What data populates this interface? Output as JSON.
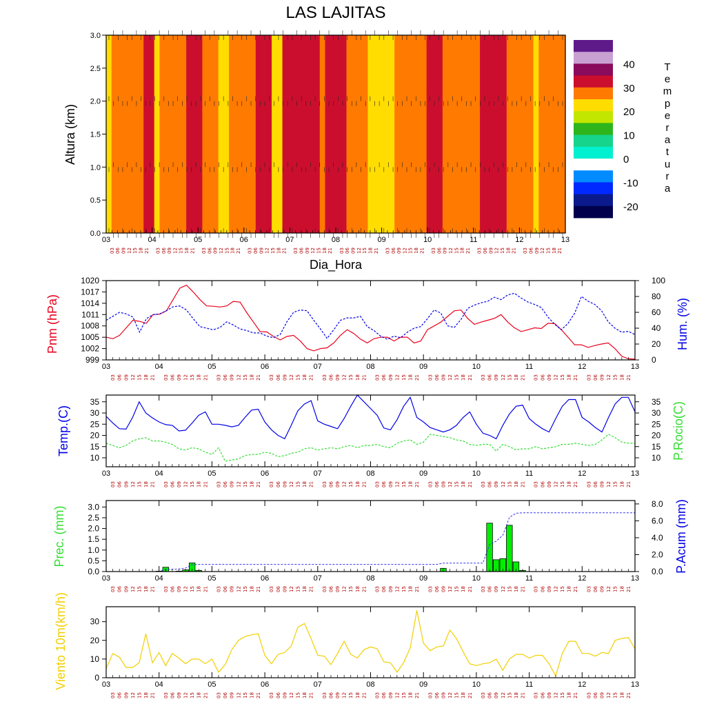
{
  "title": "LAS LAJITAS",
  "day_labels": [
    "03",
    "04",
    "05",
    "06",
    "07",
    "08",
    "09",
    "10",
    "11",
    "12",
    "13"
  ],
  "hour_labels": [
    "03",
    "06",
    "09",
    "12",
    "15",
    "18",
    "21"
  ],
  "colors": {
    "pressure": "#e8001c",
    "humidity": "#0000e6",
    "temp": "#0000e6",
    "dew": "#33dd33",
    "precip_fill": "#00ee00",
    "acc": "#3333ee",
    "wind": "#f2cf00",
    "label_hour": "#b00000"
  },
  "chart_data": [
    {
      "type": "heatmap",
      "name": "temperature_section",
      "title": "LAS LAJITAS",
      "xlabel": "Dia_Hora",
      "ylabel": "Altura (km)",
      "ylim": [
        0,
        3
      ],
      "yticks": [
        0.0,
        0.5,
        1.0,
        1.5,
        2.0,
        2.5,
        3.0
      ],
      "ytick_labels": [
        "0.0",
        "0.5",
        "1.0",
        "1.5",
        "2.0",
        "2.5",
        "3.0"
      ],
      "colorbar": {
        "label": "Temperatura",
        "label_letters": [
          "T",
          "e",
          "m",
          "p",
          "e",
          "r",
          "a",
          "t",
          "u",
          "r",
          "a"
        ],
        "tick_labels": [
          "40",
          "30",
          "20",
          "10",
          "0",
          "-10",
          "-20"
        ],
        "levels": [
          {
            "max": -20,
            "color": "#00004c"
          },
          {
            "max": -15,
            "color": "#0a1a8c"
          },
          {
            "max": -10,
            "color": "#0029ff"
          },
          {
            "max": -5,
            "color": "#008cff"
          },
          {
            "max": 0,
            "color": "#ffffff"
          },
          {
            "max": 5,
            "color": "#00f0d0"
          },
          {
            "max": 10,
            "color": "#16d48c"
          },
          {
            "max": 15,
            "color": "#2fb51c"
          },
          {
            "max": 20,
            "color": "#c2e600"
          },
          {
            "max": 25,
            "color": "#ffdd00"
          },
          {
            "max": 30,
            "color": "#ff7a00"
          },
          {
            "max": 35,
            "color": "#cc0e2e"
          },
          {
            "max": 40,
            "color": "#8a0a5c"
          },
          {
            "max": 45,
            "color": "#c8a0d2"
          },
          {
            "max": 50,
            "color": "#5f1a8a"
          }
        ]
      },
      "column_temps": [
        25,
        27,
        27,
        27,
        27,
        27,
        27,
        32,
        32,
        25,
        27,
        27,
        27,
        27,
        27,
        32,
        32,
        32,
        27,
        27,
        27,
        22,
        22,
        27,
        27,
        27,
        27,
        27,
        32,
        32,
        32,
        22,
        22,
        32,
        32,
        32,
        32,
        32,
        32,
        32,
        27,
        32,
        32,
        32,
        32,
        27,
        27,
        27,
        27,
        22,
        22,
        22,
        22,
        22,
        27,
        27,
        27,
        27,
        27,
        27,
        32,
        32,
        32,
        27,
        27,
        27,
        27,
        27,
        27,
        27,
        32,
        32,
        32,
        32,
        32,
        27,
        27,
        27,
        27,
        27,
        22,
        27,
        27,
        27,
        27,
        27
      ],
      "wind_levels_km": [
        0.0,
        1.0,
        2.0,
        3.0
      ]
    },
    {
      "type": "line",
      "name": "pressure_humidity",
      "ylabel_left": "Pnm (hPa)",
      "ylabel_right": "Hum. (%)",
      "ylim_left": [
        999,
        1020
      ],
      "ylim_right": [
        0,
        100
      ],
      "yticks_left": [
        "1020",
        "1017",
        "1014",
        "1011",
        "1008",
        "1005",
        "1002",
        "999"
      ],
      "yticks_right": [
        "100",
        "80",
        "60",
        "40",
        "20",
        "0"
      ],
      "series": [
        {
          "name": "Pnm (hPa)",
          "axis": "left",
          "color": "#e8001c",
          "dash": "none",
          "values": [
            1005,
            1004.6,
            1005.5,
            1007.5,
            1009.5,
            1009.2,
            1008.7,
            1011,
            1011.1,
            1012,
            1015,
            1018,
            1018.8,
            1017,
            1015,
            1013.3,
            1013.2,
            1013,
            1013.3,
            1014.5,
            1014.3,
            1011.5,
            1009,
            1006.5,
            1006.4,
            1005.2,
            1004.3,
            1005.2,
            1005.5,
            1004,
            1002,
            1001.4,
            1002,
            1002.2,
            1003.5,
            1005.5,
            1007,
            1006,
            1004.5,
            1003.5,
            1004.6,
            1005,
            1005,
            1004,
            1005,
            1005,
            1003.5,
            1004,
            1007,
            1008,
            1009,
            1010.5,
            1012,
            1012.2,
            1010,
            1008.4,
            1009,
            1009.5,
            1010,
            1011,
            1009,
            1007.5,
            1006.5,
            1007,
            1007.5,
            1007.3,
            1008.7,
            1008.6,
            1007,
            1005,
            1003,
            1003,
            1002.3,
            1002.8,
            1003.2,
            1003.5,
            1002,
            1000,
            999.3,
            999.2
          ]
        },
        {
          "name": "Hum. (%)",
          "axis": "right",
          "color": "#0000e6",
          "dash": "3,2",
          "values": [
            50,
            55,
            60,
            58,
            54,
            35,
            52,
            57,
            58,
            62,
            67,
            68,
            63,
            52,
            42,
            40,
            38,
            41,
            48,
            44,
            39,
            37,
            34,
            34,
            30,
            28,
            32,
            48,
            60,
            63,
            62,
            50,
            39,
            27,
            38,
            50,
            53,
            53,
            55,
            42,
            37,
            30,
            26,
            30,
            28,
            35,
            40,
            42,
            52,
            63,
            59,
            43,
            41,
            51,
            65,
            69,
            72,
            74,
            79,
            76,
            82,
            84,
            78,
            73,
            70,
            66,
            54,
            45,
            38,
            46,
            59,
            80,
            74,
            70,
            62,
            48,
            40,
            35,
            36,
            32
          ]
        }
      ]
    },
    {
      "type": "line",
      "name": "temperature_dewpoint",
      "ylabel_left": "Temp.(C)",
      "ylabel_right": "P.Rocio(C)",
      "ylim_left": [
        6,
        38
      ],
      "yticks": [
        "35",
        "30",
        "25",
        "20",
        "15",
        "10"
      ],
      "series": [
        {
          "name": "Temp.(C)",
          "axis": "left",
          "color": "#0000e6",
          "dash": "none",
          "values": [
            28.5,
            25.5,
            23,
            22.8,
            28,
            35,
            30,
            27.8,
            26,
            24.8,
            24.5,
            22,
            22.3,
            25.5,
            29,
            30.5,
            25,
            25,
            24.5,
            23.8,
            24.5,
            28,
            31.3,
            31.7,
            26,
            22.5,
            20,
            18.5,
            24.5,
            31,
            34,
            35.5,
            26.5,
            25,
            24,
            23,
            27.5,
            33,
            38,
            35,
            32,
            29,
            23.3,
            22.5,
            27,
            33,
            37,
            28,
            26,
            23.5,
            22.5,
            21.5,
            22.5,
            24.5,
            28,
            30.5,
            25,
            21,
            20,
            18.5,
            24.5,
            29.5,
            33,
            33.5,
            27.5,
            25,
            23,
            21.5,
            27.5,
            33,
            36,
            36,
            28,
            26,
            23.5,
            21.5,
            28,
            34,
            37,
            37,
            30.5
          ]
        },
        {
          "name": "P.Rocio(C)",
          "axis": "left",
          "color": "#33dd33",
          "dash": "3,2",
          "values": [
            16.5,
            15.5,
            14.5,
            15.5,
            17.5,
            18.5,
            19,
            17.5,
            17.5,
            17,
            16,
            14,
            13.5,
            14.5,
            14,
            12.5,
            11.5,
            14.5,
            8.5,
            9,
            9.5,
            11,
            11.5,
            11.5,
            12.5,
            12,
            10.5,
            11,
            12,
            12.5,
            14,
            14.5,
            13.5,
            14,
            14.5,
            14,
            15,
            15.5,
            14.5,
            15.5,
            15.5,
            16,
            15,
            14.5,
            16.5,
            17.5,
            18,
            16,
            17,
            20.5,
            20,
            19.5,
            19,
            18,
            17.5,
            16,
            15.5,
            16,
            16,
            13,
            16,
            15,
            13.5,
            14,
            14,
            15,
            14,
            14.5,
            15,
            16,
            16,
            16.5,
            16,
            15.5,
            16,
            18,
            20.5,
            19,
            17,
            16.5,
            16.5
          ]
        }
      ]
    },
    {
      "type": "bar",
      "name": "precipitation",
      "ylabel_left": "Prec. (mm)",
      "ylabel_right": "P.Acum (mm)",
      "ylim_left": [
        0,
        3.3
      ],
      "ylim_right": [
        0,
        8.4
      ],
      "yticks_left": [
        "3.0",
        "2.5",
        "2.0",
        "1.5",
        "1.0",
        "0.5",
        "0.0"
      ],
      "yticks_right": [
        "8.0",
        "6.0",
        "4.0",
        "2.0",
        "0.0"
      ],
      "bars": [
        {
          "hour": 8,
          "value": 0.02
        },
        {
          "hour": 9,
          "value": 0.2
        },
        {
          "hour": 11,
          "value": 0.02
        },
        {
          "hour": 12,
          "value": 0.08
        },
        {
          "hour": 13,
          "value": 0.4
        },
        {
          "hour": 14,
          "value": 0.05
        },
        {
          "hour": 51,
          "value": 0.15
        },
        {
          "hour": 58,
          "value": 2.25
        },
        {
          "hour": 59,
          "value": 0.55
        },
        {
          "hour": 60,
          "value": 0.6
        },
        {
          "hour": 61,
          "value": 2.15
        },
        {
          "hour": 62,
          "value": 0.45
        },
        {
          "hour": 63,
          "value": 0.05
        }
      ],
      "accumulated": {
        "name": "P.Acum (mm)",
        "color": "#3333ee",
        "dash": "3,2",
        "points": [
          [
            0,
            0
          ],
          [
            7,
            0
          ],
          [
            8,
            0.02
          ],
          [
            9,
            0.25
          ],
          [
            11,
            0.3
          ],
          [
            12,
            0.42
          ],
          [
            13,
            0.8
          ],
          [
            14,
            0.85
          ],
          [
            50,
            0.85
          ],
          [
            51,
            1.0
          ],
          [
            57,
            1.0
          ],
          [
            58,
            3.2
          ],
          [
            59,
            3.6
          ],
          [
            60,
            4.3
          ],
          [
            61,
            6.4
          ],
          [
            62,
            6.9
          ],
          [
            63,
            6.95
          ],
          [
            80,
            6.95
          ]
        ]
      }
    },
    {
      "type": "line",
      "name": "wind10m",
      "ylabel": "Viento 10m(km/h)",
      "ylim": [
        0,
        38
      ],
      "yticks": [
        "30",
        "20",
        "10",
        "0"
      ],
      "series": [
        {
          "name": "Viento 10m(km/h)",
          "axis": "left",
          "color": "#f2cf00",
          "dash": "none",
          "values": [
            5,
            13,
            11,
            5.5,
            5.5,
            8,
            23.5,
            8,
            13.5,
            6.5,
            13,
            10.5,
            7.5,
            10,
            10,
            7.5,
            10,
            3,
            7,
            15,
            20,
            22,
            23,
            23.5,
            12,
            7.5,
            12.5,
            13.5,
            17,
            27,
            29,
            21,
            12,
            11.5,
            7,
            13,
            19.5,
            12.5,
            10.5,
            15,
            16.5,
            15.5,
            8.5,
            8,
            3,
            8,
            16,
            36,
            18.5,
            14.5,
            16.5,
            17,
            25.5,
            21,
            14,
            7.5,
            6.5,
            7.5,
            8,
            10,
            4,
            10,
            12.5,
            12.5,
            10.5,
            12,
            12,
            7.5,
            1,
            13,
            19.5,
            19.5,
            13,
            13,
            11.5,
            13.5,
            13,
            20,
            21,
            21.5,
            15.5
          ]
        }
      ]
    }
  ]
}
